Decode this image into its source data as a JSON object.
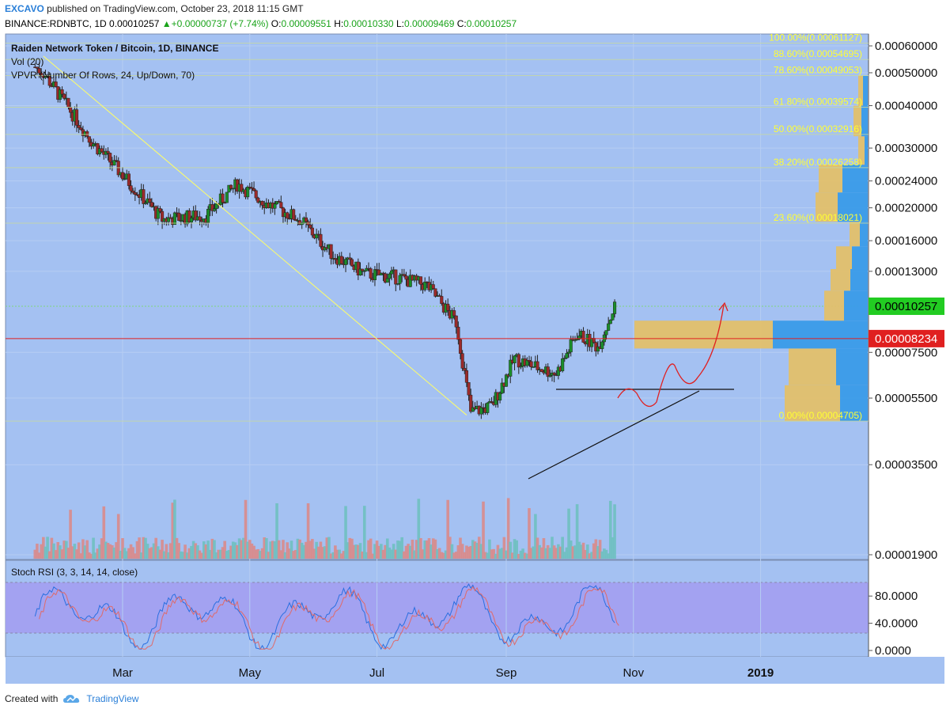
{
  "header": {
    "author": "EXCAVO",
    "published": "published on TradingView.com, October 23, 2018 11:15 GMT",
    "symbol": "BINANCE:RDNBTC, 1D",
    "last": "0.00010257",
    "change_arrow": "▲",
    "change": "+0.00000737 (+7.74%)",
    "o_label": "O:",
    "o": "0.00009551",
    "h_label": "H:",
    "h": "0.00010330",
    "l_label": "L:",
    "l": "0.00009469",
    "c_label": "C:",
    "c": "0.00010257"
  },
  "legend": {
    "title": "Raiden Network Token / Bitcoin, 1D, BINANCE",
    "vol": "Vol (20)",
    "vpvr": "VPVR (Number Of Rows, 24, Up/Down, 70)"
  },
  "stoch_label": "Stoch RSI (3, 3, 14, 14, close)",
  "footer": {
    "created": "Created with",
    "brand": "TradingView",
    "logo_icon": "tradingview-cloud-icon"
  },
  "colors": {
    "background": "#a4c1f2",
    "up": "#1a8f2a",
    "down": "#9c2a2a",
    "fib_text": "#ffff33",
    "price_badge": "#22cc22",
    "red_line": "#e02020",
    "stoch_band": "#a3a0f0",
    "vp_up": "#e3c06a",
    "vp_down": "#3a9be8"
  },
  "chart_data": {
    "type": "candlestick",
    "title": "Raiden Network Token / Bitcoin, 1D, BINANCE",
    "y_scale": "log",
    "yaxis_ticks": [
      "0.00060000",
      "0.00050000",
      "0.00040000",
      "0.00030000",
      "0.00024000",
      "0.00020000",
      "0.00016000",
      "0.00013000",
      "0.00010257",
      "0.00008234",
      "0.00007500",
      "0.00005500",
      "0.00003500",
      "0.00001900"
    ],
    "x_ticks": [
      "Mar",
      "May",
      "Jul",
      "Sep",
      "Nov",
      "2019"
    ],
    "current_price": "0.00010257",
    "horizontal_level": "0.00008234",
    "fib_levels": [
      {
        "label": "100.00%(0.00061127)",
        "value": 0.00061127
      },
      {
        "label": "88.60%(0.00054695)",
        "value": 0.00054695
      },
      {
        "label": "78.60%(0.00049053)",
        "value": 0.00049053
      },
      {
        "label": "61.80%(0.00039574)",
        "value": 0.00039574
      },
      {
        "label": "50.00%(0.00032916)",
        "value": 0.00032916
      },
      {
        "label": "38.20%(0.00026258)",
        "value": 0.00026258
      },
      {
        "label": "23.60%(0.00018021)",
        "value": 0.00018021
      },
      {
        "label": "0.00%(0.00004705)",
        "value": 4.705e-05
      }
    ],
    "price_path": [
      {
        "date": "2018-01-18",
        "close": 0.00052
      },
      {
        "date": "2018-01-22",
        "close": 0.0005
      },
      {
        "date": "2018-02-01",
        "close": 0.00041
      },
      {
        "date": "2018-02-15",
        "close": 0.00031
      },
      {
        "date": "2018-03-01",
        "close": 0.00025
      },
      {
        "date": "2018-03-20",
        "close": 0.000185
      },
      {
        "date": "2018-04-10",
        "close": 0.00019
      },
      {
        "date": "2018-04-25",
        "close": 0.000235
      },
      {
        "date": "2018-05-10",
        "close": 0.000205
      },
      {
        "date": "2018-05-25",
        "close": 0.000185
      },
      {
        "date": "2018-06-10",
        "close": 0.000145
      },
      {
        "date": "2018-06-25",
        "close": 0.000128
      },
      {
        "date": "2018-07-10",
        "close": 0.000125
      },
      {
        "date": "2018-07-25",
        "close": 0.000118
      },
      {
        "date": "2018-08-08",
        "close": 9.2e-05
      },
      {
        "date": "2018-08-15",
        "close": 5e-05
      },
      {
        "date": "2018-08-25",
        "close": 5.2e-05
      },
      {
        "date": "2018-09-05",
        "close": 7.2e-05
      },
      {
        "date": "2018-09-15",
        "close": 6.8e-05
      },
      {
        "date": "2018-09-25",
        "close": 6.5e-05
      },
      {
        "date": "2018-10-05",
        "close": 8.5e-05
      },
      {
        "date": "2018-10-15",
        "close": 7.8e-05
      },
      {
        "date": "2018-10-23",
        "close": 0.00010257
      }
    ],
    "stoch_rsi": {
      "ticks": [
        "80.0000",
        "40.0000",
        "0.0000"
      ],
      "band": [
        20,
        80
      ]
    }
  }
}
